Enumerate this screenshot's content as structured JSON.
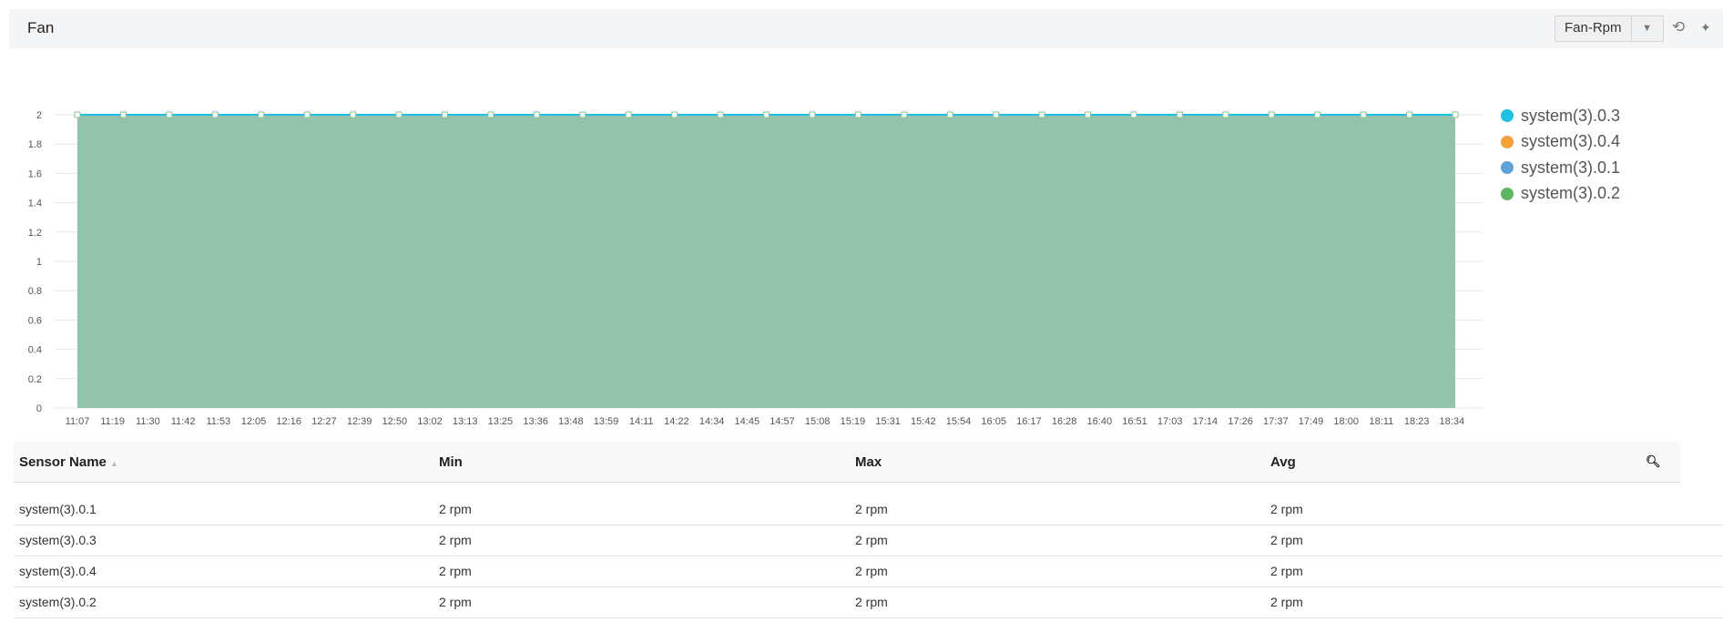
{
  "header": {
    "title": "Fan",
    "metric_select": "Fan-Rpm",
    "icons": [
      "refresh-icon",
      "collapse-icon"
    ]
  },
  "chart_data": {
    "type": "area",
    "ylim": [
      0,
      2
    ],
    "y_ticks": [
      "0",
      "0.2",
      "0.4",
      "0.6",
      "0.8",
      "1",
      "1.2",
      "1.4",
      "1.6",
      "1.8",
      "2"
    ],
    "x_ticks": [
      "11:07",
      "11:19",
      "11:30",
      "11:42",
      "11:53",
      "12:05",
      "12:16",
      "12:27",
      "12:39",
      "12:50",
      "13:02",
      "13:13",
      "13:25",
      "13:36",
      "13:48",
      "13:59",
      "14:11",
      "14:22",
      "14:34",
      "14:45",
      "14:57",
      "15:08",
      "15:19",
      "15:31",
      "15:42",
      "15:54",
      "16:05",
      "16:17",
      "16:28",
      "16:40",
      "16:51",
      "17:03",
      "17:14",
      "17:26",
      "17:37",
      "17:49",
      "18:00",
      "18:11",
      "18:23",
      "18:34"
    ],
    "grid": true,
    "legend_position": "right",
    "series": [
      {
        "name": "system(3).0.3",
        "color": "#1ec0e6",
        "values": [
          2,
          2,
          2,
          2,
          2,
          2,
          2,
          2,
          2,
          2,
          2,
          2,
          2,
          2,
          2,
          2,
          2,
          2,
          2,
          2,
          2,
          2,
          2,
          2,
          2,
          2,
          2,
          2,
          2,
          2,
          2
        ]
      },
      {
        "name": "system(3).0.4",
        "color": "#f7a035",
        "values": [
          2,
          2,
          2,
          2,
          2,
          2,
          2,
          2,
          2,
          2,
          2,
          2,
          2,
          2,
          2,
          2,
          2,
          2,
          2,
          2,
          2,
          2,
          2,
          2,
          2,
          2,
          2,
          2,
          2,
          2,
          2
        ]
      },
      {
        "name": "system(3).0.1",
        "color": "#5ba3dc",
        "values": [
          2,
          2,
          2,
          2,
          2,
          2,
          2,
          2,
          2,
          2,
          2,
          2,
          2,
          2,
          2,
          2,
          2,
          2,
          2,
          2,
          2,
          2,
          2,
          2,
          2,
          2,
          2,
          2,
          2,
          2,
          2
        ]
      },
      {
        "name": "system(3).0.2",
        "color": "#5cb85c",
        "values": [
          2,
          2,
          2,
          2,
          2,
          2,
          2,
          2,
          2,
          2,
          2,
          2,
          2,
          2,
          2,
          2,
          2,
          2,
          2,
          2,
          2,
          2,
          2,
          2,
          2,
          2,
          2,
          2,
          2,
          2,
          2
        ]
      }
    ]
  },
  "table": {
    "columns": [
      "Sensor Name",
      "Min",
      "Max",
      "Avg"
    ],
    "rows": [
      [
        "system(3).0.1",
        "2 rpm",
        "2 rpm",
        "2 rpm"
      ],
      [
        "system(3).0.3",
        "2 rpm",
        "2 rpm",
        "2 rpm"
      ],
      [
        "system(3).0.4",
        "2 rpm",
        "2 rpm",
        "2 rpm"
      ],
      [
        "system(3).0.2",
        "2 rpm",
        "2 rpm",
        "2 rpm"
      ]
    ]
  }
}
